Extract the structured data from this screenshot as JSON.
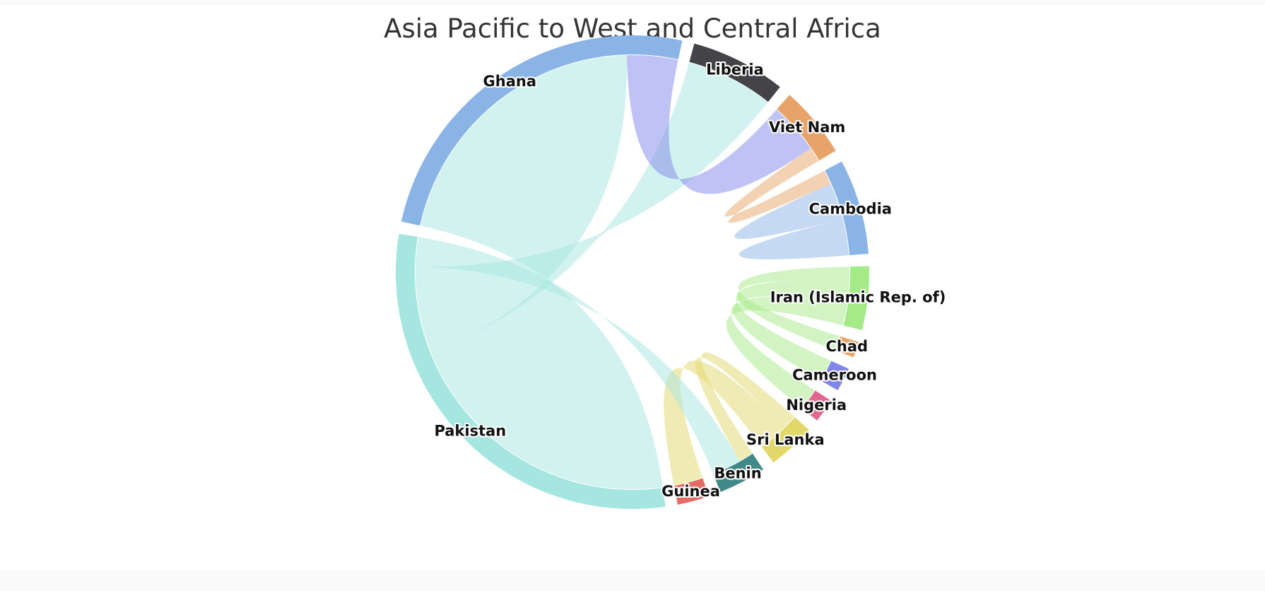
{
  "chart_data": {
    "type": "dependency-wheel",
    "title": "Asia Pacific to West and Central Africa",
    "nodes": [
      {
        "name": "Pakistan",
        "color": "#a5e6e0"
      },
      {
        "name": "Ghana",
        "color": "#8bb4e6"
      },
      {
        "name": "Liberia",
        "color": "#434348"
      },
      {
        "name": "Viet Nam",
        "color": "#e8a468"
      },
      {
        "name": "Cambodia",
        "color": "#8bb4e6"
      },
      {
        "name": "Iran (Islamic Rep. of)",
        "color": "#a4ea86"
      },
      {
        "name": "Chad",
        "color": "#e8a468"
      },
      {
        "name": "Cameroon",
        "color": "#8085e9"
      },
      {
        "name": "Nigeria",
        "color": "#e0688f"
      },
      {
        "name": "Sri Lanka",
        "color": "#e2d86a"
      },
      {
        "name": "Benin",
        "color": "#3f8a88"
      },
      {
        "name": "Guinea",
        "color": "#e46a64"
      }
    ],
    "links": [
      {
        "from": "Pakistan",
        "to": "Ghana",
        "value": 39,
        "color": "#a5e6e0"
      },
      {
        "from": "Pakistan",
        "to": "Liberia",
        "value": 3,
        "color": "#a5e6e0"
      },
      {
        "from": "Pakistan",
        "to": "Liberia",
        "value": 3,
        "color": "#a5e6e0"
      },
      {
        "from": "Pakistan",
        "to": "Liberia",
        "value": 6,
        "color": "#a5e6e0"
      },
      {
        "from": "Viet Nam",
        "to": "Ghana",
        "value": 7,
        "color": "#8085e9"
      },
      {
        "from": "Viet Nam",
        "to": "Cambodia",
        "value": 2,
        "color": "#e8a468"
      },
      {
        "from": "Cambodia",
        "to": "Cambodia",
        "value": 5,
        "color": "#8bb4e6"
      },
      {
        "from": "Iran (Islamic Rep. of)",
        "to": "Chad",
        "value": 2,
        "color": "#a4ea86"
      },
      {
        "from": "Iran (Islamic Rep. of)",
        "to": "Cameroon",
        "value": 3,
        "color": "#a4ea86"
      },
      {
        "from": "Iran (Islamic Rep. of)",
        "to": "Nigeria",
        "value": 3,
        "color": "#a4ea86"
      },
      {
        "from": "Sri Lanka",
        "to": "Benin",
        "value": 2,
        "color": "#e2d86a"
      },
      {
        "from": "Sri Lanka",
        "to": "Guinea",
        "value": 4,
        "color": "#e2d86a"
      },
      {
        "from": "Pakistan",
        "to": "Benin",
        "value": 4,
        "color": "#a5e6e0"
      }
    ]
  }
}
